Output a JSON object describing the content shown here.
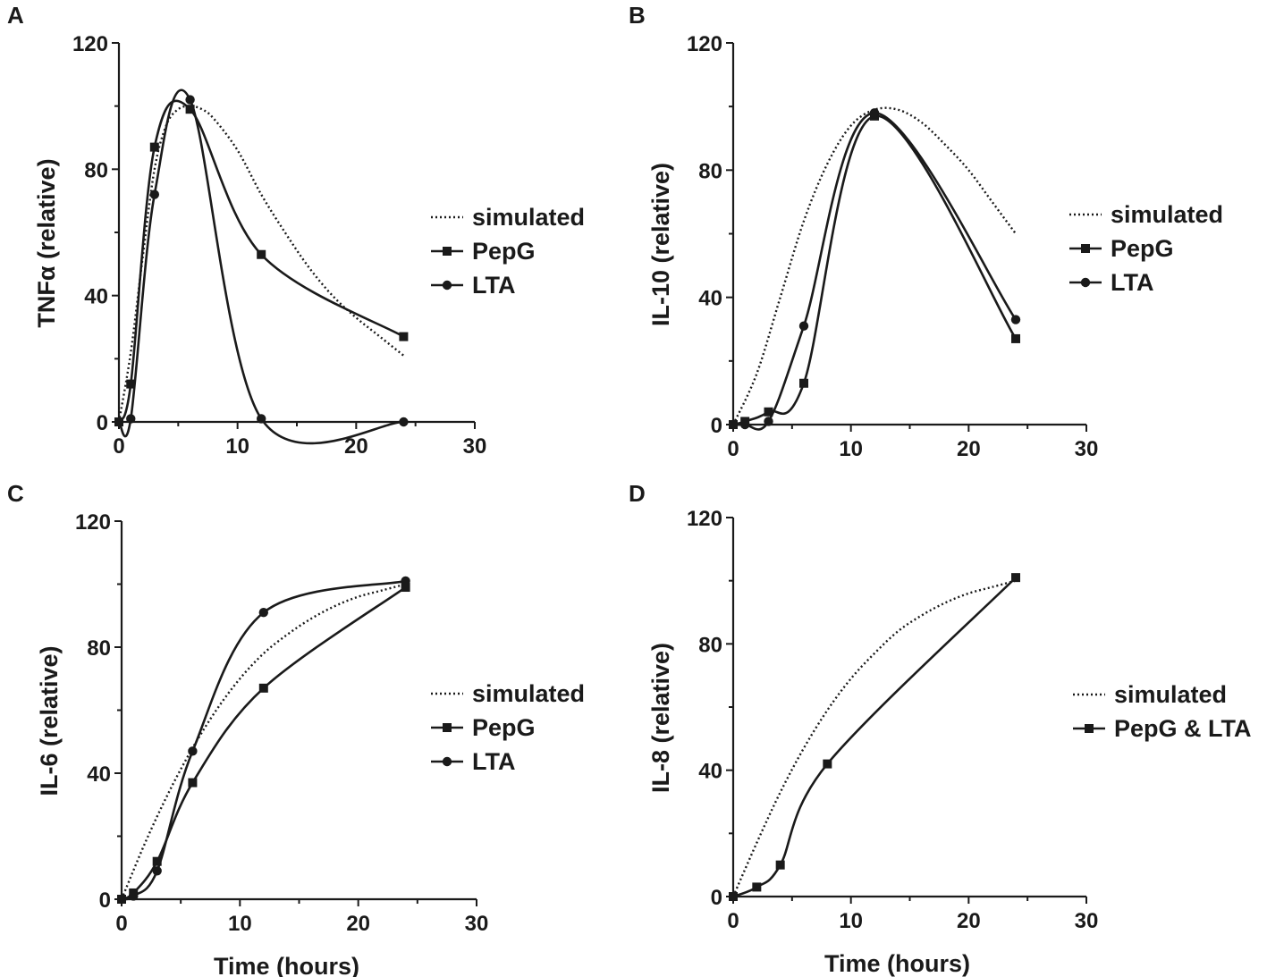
{
  "chart_data": [
    {
      "panel": "A",
      "type": "line",
      "ylabel": "TNFα (relative)",
      "xlabel": "",
      "xlim": [
        0,
        30
      ],
      "ylim": [
        0,
        120
      ],
      "xticks": [
        0,
        10,
        20,
        30
      ],
      "yticks": [
        0,
        40,
        80,
        120
      ],
      "legend": [
        "simulated",
        "PepG",
        "LTA"
      ],
      "series": [
        {
          "name": "simulated",
          "style": "dotted",
          "x": [
            0,
            1,
            2,
            3,
            4,
            5,
            6,
            7,
            8,
            10,
            12,
            14,
            16,
            18,
            20,
            22,
            24
          ],
          "y": [
            0,
            22,
            52,
            80,
            94,
            99,
            100,
            99,
            96,
            86,
            72,
            60,
            49,
            40,
            33,
            27,
            21
          ]
        },
        {
          "name": "PepG",
          "marker": "square",
          "x": [
            0,
            1,
            3,
            6,
            12,
            24
          ],
          "y": [
            0,
            12,
            87,
            99,
            53,
            27
          ]
        },
        {
          "name": "LTA",
          "marker": "circle",
          "x": [
            0,
            1,
            3,
            6,
            12,
            24
          ],
          "y": [
            0,
            1,
            72,
            102,
            1,
            0
          ]
        }
      ]
    },
    {
      "panel": "B",
      "type": "line",
      "ylabel": "IL-10 (relative)",
      "xlabel": "",
      "xlim": [
        0,
        30
      ],
      "ylim": [
        0,
        120
      ],
      "xticks": [
        0,
        10,
        20,
        30
      ],
      "yticks": [
        0,
        40,
        80,
        120
      ],
      "legend": [
        "simulated",
        "PepG",
        "LTA"
      ],
      "series": [
        {
          "name": "simulated",
          "style": "dotted",
          "x": [
            0,
            2,
            4,
            6,
            8,
            10,
            12,
            14,
            16,
            18,
            20,
            22,
            24
          ],
          "y": [
            0,
            16,
            40,
            64,
            82,
            94,
            99,
            99,
            95,
            88,
            80,
            70,
            60
          ]
        },
        {
          "name": "PepG",
          "marker": "square",
          "x": [
            0,
            1,
            3,
            6,
            12,
            24
          ],
          "y": [
            0,
            1,
            4,
            13,
            97,
            27
          ]
        },
        {
          "name": "LTA",
          "marker": "circle",
          "x": [
            0,
            1,
            3,
            6,
            12,
            24
          ],
          "y": [
            0,
            0,
            1,
            31,
            98,
            33
          ]
        }
      ]
    },
    {
      "panel": "C",
      "type": "line",
      "ylabel": "IL-6  (relative)",
      "xlabel": "Time (hours)",
      "xlim": [
        0,
        30
      ],
      "ylim": [
        0,
        120
      ],
      "xticks": [
        0,
        10,
        20,
        30
      ],
      "yticks": [
        0,
        40,
        80,
        120
      ],
      "legend": [
        "simulated",
        "PepG",
        "LTA"
      ],
      "series": [
        {
          "name": "simulated",
          "style": "dotted",
          "x": [
            0,
            2,
            4,
            6,
            8,
            10,
            12,
            14,
            16,
            18,
            20,
            22,
            24
          ],
          "y": [
            0,
            18,
            34,
            48,
            60,
            70,
            78,
            84,
            89,
            93,
            96,
            98,
            100
          ]
        },
        {
          "name": "PepG",
          "marker": "square",
          "x": [
            0,
            1,
            3,
            6,
            12,
            24
          ],
          "y": [
            0,
            2,
            12,
            37,
            67,
            99
          ]
        },
        {
          "name": "LTA",
          "marker": "circle",
          "x": [
            0,
            1,
            3,
            6,
            12,
            24
          ],
          "y": [
            0,
            1,
            9,
            47,
            91,
            101
          ]
        }
      ]
    },
    {
      "panel": "D",
      "type": "line",
      "ylabel": "IL-8 (relative)",
      "xlabel": "Time (hours)",
      "xlim": [
        0,
        30
      ],
      "ylim": [
        0,
        120
      ],
      "xticks": [
        0,
        10,
        20,
        30
      ],
      "yticks": [
        0,
        40,
        80,
        120
      ],
      "legend": [
        "simulated",
        "PepG & LTA"
      ],
      "series": [
        {
          "name": "simulated",
          "style": "dotted",
          "x": [
            0,
            2,
            4,
            6,
            8,
            10,
            12,
            14,
            16,
            18,
            20,
            22,
            24
          ],
          "y": [
            0,
            17,
            33,
            47,
            59,
            69,
            77,
            84,
            89,
            93,
            96,
            98,
            100
          ]
        },
        {
          "name": "PepG & LTA",
          "marker": "square",
          "x": [
            0,
            2,
            4,
            8,
            24
          ],
          "y": [
            0,
            3,
            10,
            42,
            101
          ]
        }
      ]
    }
  ]
}
